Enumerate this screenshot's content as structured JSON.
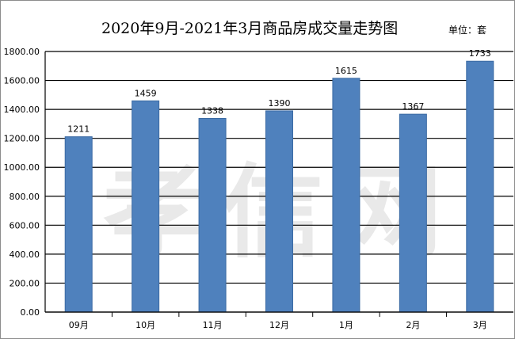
{
  "header": {
    "title": "2020年9月-2021年3月商品房成交量走势图",
    "unit": "单位：套"
  },
  "watermark": "孝信网",
  "colors": {
    "bar": "#4f81bd",
    "bar_edge": "#3b6aa3",
    "grid": "#000000"
  },
  "chart_data": {
    "type": "bar",
    "title": "2020年9月-2021年3月商品房成交量走势图",
    "unit_note": "单位：套",
    "xlabel": "",
    "ylabel": "",
    "categories": [
      "09月",
      "10月",
      "11月",
      "12月",
      "1月",
      "2月",
      "3月"
    ],
    "values": [
      1211,
      1459,
      1338,
      1390,
      1615,
      1367,
      1733
    ],
    "ylim": [
      0,
      1800
    ],
    "ytick_step": 200,
    "ytick_labels": [
      "0.00",
      "200.00",
      "400.00",
      "600.00",
      "800.00",
      "1000.00",
      "1200.00",
      "1400.00",
      "1600.00",
      "1800.00"
    ],
    "grid": true,
    "legend": "none"
  }
}
